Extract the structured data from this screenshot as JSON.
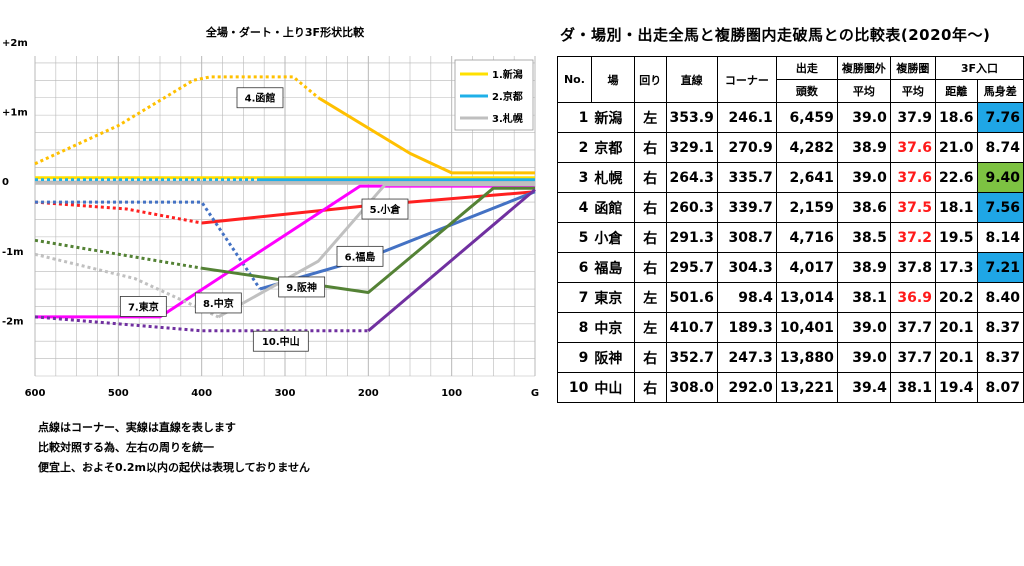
{
  "chart_data": {
    "type": "line",
    "title": "全場・ダート・上り3F形状比較",
    "xlabel": "",
    "ylabel": "",
    "x_ticks": [
      "600",
      "500",
      "400",
      "300",
      "200",
      "100",
      "G"
    ],
    "y_ticks": [
      "+2m",
      "+1m",
      "0",
      "-1m",
      "-2m"
    ],
    "xlim": [
      600,
      0
    ],
    "ylim": [
      -2.8,
      1.8
    ],
    "grid": true,
    "legend": "top-right",
    "legend_entries": [
      "1.新潟",
      "2.京都",
      "3.札幌"
    ],
    "series": [
      {
        "label": "1.新潟",
        "color": "#ffe000",
        "segments": [
          {
            "points": [
              [
                600,
                0.05
              ],
              [
                0,
                0.05
              ]
            ],
            "dashed": false
          }
        ]
      },
      {
        "label": "2.京都",
        "color": "#1fb0e8",
        "segments": [
          {
            "points": [
              [
                600,
                0.02
              ],
              [
                330,
                0.02
              ]
            ],
            "dashed": true
          },
          {
            "points": [
              [
                330,
                0.02
              ],
              [
                0,
                0.02
              ]
            ],
            "dashed": false
          }
        ]
      },
      {
        "label": "3.札幌",
        "color": "#bfbfbf",
        "segments": [
          {
            "points": [
              [
                600,
                -0.02
              ],
              [
                0,
                -0.02
              ]
            ],
            "dashed": false
          }
        ]
      },
      {
        "label": "4.函館",
        "color": "#ffc000",
        "segments": [
          {
            "points": [
              [
                600,
                0.25
              ],
              [
                500,
                0.8
              ],
              [
                410,
                1.45
              ],
              [
                390,
                1.5
              ],
              [
                290,
                1.5
              ],
              [
                260,
                1.2
              ]
            ],
            "dashed": true
          },
          {
            "points": [
              [
                260,
                1.2
              ],
              [
                150,
                0.4
              ],
              [
                100,
                0.12
              ],
              [
                0,
                0.12
              ]
            ],
            "dashed": false
          }
        ]
      },
      {
        "label": "5.小倉",
        "color": "#ff2020",
        "segments": [
          {
            "points": [
              [
                600,
                -0.3
              ],
              [
                490,
                -0.4
              ],
              [
                400,
                -0.6
              ]
            ],
            "dashed": true
          },
          {
            "points": [
              [
                400,
                -0.6
              ],
              [
                200,
                -0.35
              ],
              [
                0,
                -0.15
              ]
            ],
            "dashed": false
          }
        ]
      },
      {
        "label": "6.福島",
        "color": "#4472c4",
        "segments": [
          {
            "points": [
              [
                600,
                -0.3
              ],
              [
                400,
                -0.3
              ],
              [
                330,
                -1.55
              ]
            ],
            "dashed": true
          },
          {
            "points": [
              [
                330,
                -1.55
              ],
              [
                200,
                -1.1
              ],
              [
                0,
                -0.15
              ]
            ],
            "dashed": false
          }
        ]
      },
      {
        "label": "7.東京",
        "color": "#ff00ff",
        "segments": [
          {
            "points": [
              [
                600,
                -1.95
              ],
              [
                450,
                -1.95
              ],
              [
                210,
                -0.07
              ],
              [
                0,
                -0.07
              ]
            ],
            "dashed": false
          }
        ]
      },
      {
        "label": "8.中京",
        "color": "#c0c0c0",
        "segments": [
          {
            "points": [
              [
                600,
                -1.05
              ],
              [
                480,
                -1.4
              ],
              [
                380,
                -1.95
              ]
            ],
            "dashed": true
          },
          {
            "points": [
              [
                380,
                -1.95
              ],
              [
                260,
                -1.15
              ],
              [
                180,
                -0.05
              ],
              [
                0,
                -0.05
              ]
            ],
            "dashed": false
          }
        ]
      },
      {
        "label": "9.阪神",
        "color": "#548235",
        "segments": [
          {
            "points": [
              [
                600,
                -0.85
              ],
              [
                400,
                -1.25
              ]
            ],
            "dashed": true
          },
          {
            "points": [
              [
                400,
                -1.25
              ],
              [
                200,
                -1.6
              ],
              [
                50,
                -0.1
              ],
              [
                0,
                -0.1
              ]
            ],
            "dashed": false
          }
        ]
      },
      {
        "label": "10.中山",
        "color": "#7030a0",
        "segments": [
          {
            "points": [
              [
                600,
                -1.95
              ],
              [
                400,
                -2.15
              ],
              [
                200,
                -2.15
              ]
            ],
            "dashed": true
          },
          {
            "points": [
              [
                200,
                -2.15
              ],
              [
                0,
                -0.12
              ]
            ],
            "dashed": false
          }
        ]
      }
    ],
    "labels": [
      {
        "text": "4.函館",
        "x": 330,
        "y": 1.2
      },
      {
        "text": "5.小倉",
        "x": 180,
        "y": -0.4
      },
      {
        "text": "6.福島",
        "x": 210,
        "y": -1.08
      },
      {
        "text": "9.阪神",
        "x": 280,
        "y": -1.52
      },
      {
        "text": "7.東京",
        "x": 470,
        "y": -1.8
      },
      {
        "text": "8.中京",
        "x": 380,
        "y": -1.75
      },
      {
        "text": "10.中山",
        "x": 305,
        "y": -2.3
      }
    ]
  },
  "notes": [
    "点線はコーナー、実線は直線を表します",
    "比較対照する為、左右の周りを統一",
    "便宜上、およそ0.2m以内の起伏は表現しておりません"
  ],
  "table": {
    "title": "ダ・場別・出走全馬と複勝圏内走破馬との比較表(2020年～)",
    "headers": {
      "no": "No.",
      "track": "場",
      "dir": "回り",
      "straight": "直線",
      "corner": "コーナー",
      "runners": "出走",
      "runners2": "頭数",
      "out_avg": "複勝圏外",
      "out_avg2": "平均",
      "in_avg": "複勝圏",
      "in_avg2": "平均",
      "entry": "3F入口",
      "dist": "距離",
      "margin": "馬身差"
    },
    "rows": [
      {
        "no": "1",
        "track": "新潟",
        "dir": "左",
        "straight": "353.9",
        "corner": "246.1",
        "runners": "6,459",
        "out": "39.0",
        "in": "37.9",
        "dist": "18.6",
        "margin": "7.76",
        "in_red": false,
        "hl": "blue"
      },
      {
        "no": "2",
        "track": "京都",
        "dir": "右",
        "straight": "329.1",
        "corner": "270.9",
        "runners": "4,282",
        "out": "38.9",
        "in": "37.6",
        "dist": "21.0",
        "margin": "8.74",
        "in_red": true,
        "hl": ""
      },
      {
        "no": "3",
        "track": "札幌",
        "dir": "右",
        "straight": "264.3",
        "corner": "335.7",
        "runners": "2,641",
        "out": "39.0",
        "in": "37.6",
        "dist": "22.6",
        "margin": "9.40",
        "in_red": true,
        "hl": "green"
      },
      {
        "no": "4",
        "track": "函館",
        "dir": "右",
        "straight": "260.3",
        "corner": "339.7",
        "runners": "2,159",
        "out": "38.6",
        "in": "37.5",
        "dist": "18.1",
        "margin": "7.56",
        "in_red": true,
        "hl": "blue"
      },
      {
        "no": "5",
        "track": "小倉",
        "dir": "右",
        "straight": "291.3",
        "corner": "308.7",
        "runners": "4,716",
        "out": "38.5",
        "in": "37.2",
        "dist": "19.5",
        "margin": "8.14",
        "in_red": true,
        "hl": ""
      },
      {
        "no": "6",
        "track": "福島",
        "dir": "右",
        "straight": "295.7",
        "corner": "304.3",
        "runners": "4,017",
        "out": "38.9",
        "in": "37.8",
        "dist": "17.3",
        "margin": "7.21",
        "in_red": false,
        "hl": "blue"
      },
      {
        "no": "7",
        "track": "東京",
        "dir": "左",
        "straight": "501.6",
        "corner": "98.4",
        "runners": "13,014",
        "out": "38.1",
        "in": "36.9",
        "dist": "20.2",
        "margin": "8.40",
        "in_red": true,
        "hl": ""
      },
      {
        "no": "8",
        "track": "中京",
        "dir": "左",
        "straight": "410.7",
        "corner": "189.3",
        "runners": "10,401",
        "out": "39.0",
        "in": "37.7",
        "dist": "20.1",
        "margin": "8.37",
        "in_red": false,
        "hl": ""
      },
      {
        "no": "9",
        "track": "阪神",
        "dir": "右",
        "straight": "352.7",
        "corner": "247.3",
        "runners": "13,880",
        "out": "39.0",
        "in": "37.7",
        "dist": "20.1",
        "margin": "8.37",
        "in_red": false,
        "hl": ""
      },
      {
        "no": "10",
        "track": "中山",
        "dir": "右",
        "straight": "308.0",
        "corner": "292.0",
        "runners": "13,221",
        "out": "39.4",
        "in": "38.1",
        "dist": "19.4",
        "margin": "8.07",
        "in_red": false,
        "hl": ""
      }
    ]
  }
}
